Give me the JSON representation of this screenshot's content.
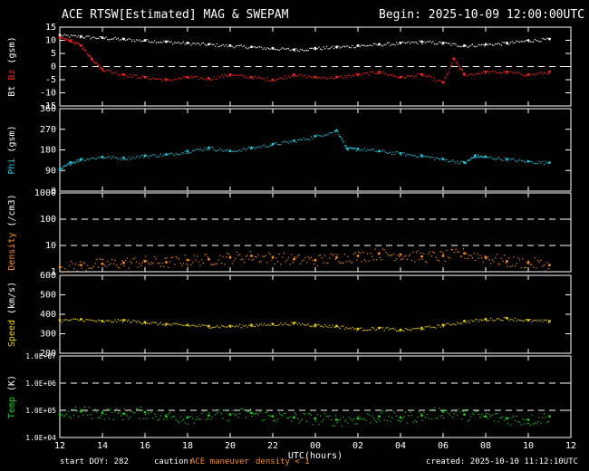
{
  "header": {
    "title": "ACE RTSW[Estimated] MAG & SWEPAM",
    "begin": "Begin: 2025-10-09 12:00:00UTC"
  },
  "footer": {
    "start_doy": "start DOY: 282",
    "caution_label": "caution:",
    "caution_maneuver": "ACE maneuver",
    "caution_density": "density < 1",
    "created": "created: 2025-10-10 11:12:10UTC"
  },
  "colors": {
    "bt": "#ffffff",
    "bz": "#ff2020",
    "phi": "#22c4d8",
    "density": "#ff8c1a",
    "speed": "#e8d000",
    "temp": "#19d019",
    "frame": "#ffffff",
    "dash": "#ffffff"
  },
  "chart_data": {
    "type": "scatter",
    "x_axis": {
      "label": "UTC(hours)",
      "ticks": [
        "12",
        "14",
        "16",
        "18",
        "20",
        "22",
        "00",
        "02",
        "04",
        "06",
        "08",
        "10",
        "12"
      ]
    },
    "panels": [
      {
        "id": "mag",
        "ylabel_parts": [
          "Bt",
          "Bz",
          "(gsm)"
        ],
        "ytick_labels": [
          "15",
          "10",
          "5",
          "0",
          "-5",
          "-10",
          "-15"
        ],
        "ylim": [
          -15,
          15
        ],
        "scale": "linear",
        "dashed": [
          0
        ],
        "series": [
          {
            "name": "Bt",
            "x": [
              0,
              1,
              2,
              3,
              4,
              5,
              6,
              7,
              8,
              9,
              10,
              11,
              12,
              13,
              14,
              15,
              16,
              17,
              18,
              19,
              20,
              21,
              22,
              23
            ],
            "y": [
              12,
              11.5,
              11,
              10.5,
              10,
              9.5,
              9,
              8.5,
              8,
              7.5,
              7,
              6.5,
              7,
              7.5,
              8,
              8.5,
              9,
              9.5,
              9,
              8,
              8.5,
              9,
              10,
              10.5
            ]
          },
          {
            "name": "Bz",
            "x": [
              0,
              0.5,
              1,
              1.5,
              2,
              3,
              4,
              5,
              6,
              7,
              8,
              9,
              10,
              11,
              12,
              13,
              14,
              15,
              16,
              17,
              18,
              18.5,
              19,
              20,
              21,
              22,
              23
            ],
            "y": [
              11,
              10,
              8,
              3,
              -1,
              -3,
              -4,
              -5,
              -4,
              -4.5,
              -3,
              -4,
              -5,
              -3,
              -4,
              -4,
              -3,
              -2,
              -4,
              -3,
              -6,
              3,
              -3,
              -2,
              -2,
              -3,
              -2
            ]
          }
        ]
      },
      {
        "id": "phi",
        "ylabel_parts": [
          "Phi",
          "(gsm)"
        ],
        "ytick_labels": [
          "360",
          "270",
          "180",
          "90",
          "0"
        ],
        "ylim": [
          0,
          360
        ],
        "scale": "linear",
        "dashed": [],
        "series": [
          {
            "name": "Phi",
            "x": [
              0,
              0.5,
              1,
              2,
              3,
              4,
              5,
              6,
              7,
              8,
              9,
              10,
              11,
              12,
              13,
              13.5,
              14,
              15,
              16,
              17,
              18,
              19,
              19.5,
              20,
              21,
              22,
              23
            ],
            "y": [
              95,
              125,
              140,
              150,
              145,
              155,
              160,
              175,
              190,
              175,
              190,
              205,
              220,
              240,
              265,
              185,
              185,
              175,
              165,
              155,
              140,
              125,
              155,
              150,
              140,
              130,
              125
            ]
          }
        ]
      },
      {
        "id": "density",
        "ylabel_parts": [
          "Density",
          "(/cm3)"
        ],
        "ytick_labels": [
          "1000",
          "100",
          "10",
          "1"
        ],
        "ylim": [
          1,
          1000
        ],
        "scale": "log",
        "dashed": [
          100,
          10
        ],
        "series": [
          {
            "name": "Density",
            "x": [
              0,
              1,
              2,
              3,
              4,
              5,
              6,
              7,
              8,
              9,
              10,
              11,
              12,
              13,
              14,
              15,
              16,
              17,
              18,
              19,
              20,
              21,
              22,
              23
            ],
            "y": [
              1.5,
              1.8,
              2,
              2.2,
              2.5,
              2.3,
              2.8,
              3,
              3.5,
              4,
              3.5,
              3,
              2.8,
              3.5,
              4,
              5,
              4.5,
              3.8,
              4,
              5,
              3.5,
              2.5,
              2.2,
              1.8
            ]
          }
        ]
      },
      {
        "id": "speed",
        "ylabel_parts": [
          "Speed",
          "(km/s)"
        ],
        "ytick_labels": [
          "600",
          "500",
          "400",
          "300",
          "200"
        ],
        "ylim": [
          200,
          600
        ],
        "scale": "linear",
        "dashed": [],
        "series": [
          {
            "name": "Speed",
            "x": [
              0,
              1,
              2,
              3,
              4,
              5,
              6,
              7,
              8,
              9,
              10,
              11,
              12,
              13,
              14,
              15,
              16,
              17,
              18,
              19,
              20,
              21,
              22,
              23
            ],
            "y": [
              370,
              375,
              365,
              370,
              360,
              350,
              345,
              340,
              340,
              345,
              350,
              355,
              345,
              340,
              325,
              330,
              320,
              330,
              345,
              365,
              375,
              380,
              370,
              365
            ]
          }
        ]
      },
      {
        "id": "temp",
        "ylabel_parts": [
          "Temp",
          "(K)"
        ],
        "ytick_labels": [
          "1.0E+07",
          "1.0E+06",
          "1.0E+05",
          "1.0E+04"
        ],
        "ylim": [
          10000,
          10000000
        ],
        "scale": "log",
        "dashed": [
          1000000,
          100000
        ],
        "series": [
          {
            "name": "Temp",
            "x": [
              0,
              1,
              2,
              3,
              4,
              5,
              6,
              7,
              8,
              9,
              10,
              11,
              12,
              13,
              14,
              15,
              16,
              17,
              18,
              19,
              20,
              21,
              22,
              23
            ],
            "y": [
              70000,
              90000,
              80000,
              75000,
              85000,
              60000,
              55000,
              65000,
              70000,
              80000,
              60000,
              55000,
              50000,
              45000,
              50000,
              60000,
              55000,
              65000,
              90000,
              70000,
              60000,
              50000,
              45000,
              60000
            ]
          }
        ]
      }
    ]
  }
}
